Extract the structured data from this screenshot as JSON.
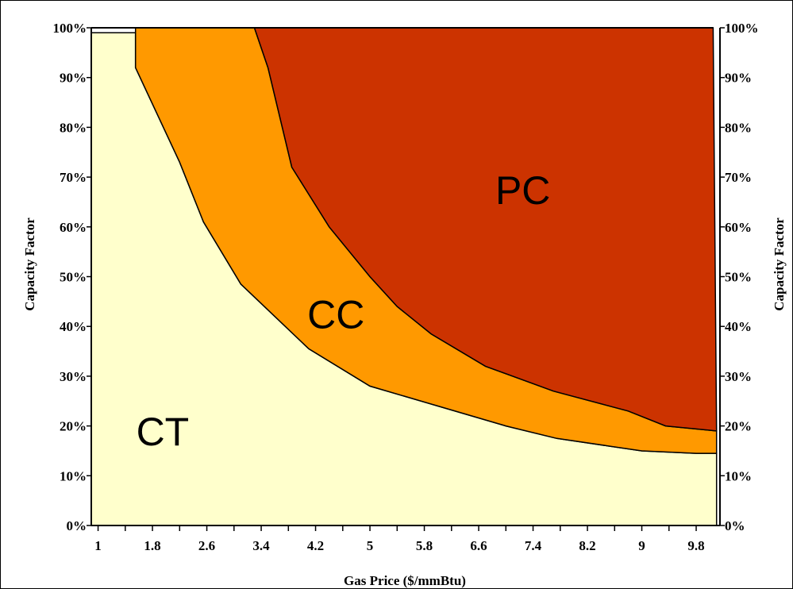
{
  "chart_data": {
    "type": "area",
    "title": "",
    "xlabel": "Gas Price ($/mmBtu)",
    "ylabel": "Capacity Factor",
    "ylabel_right": "Capacity Factor",
    "x_ticks": [
      "1",
      "1.8",
      "2.6",
      "3.4",
      "4.2",
      "5",
      "5.8",
      "6.6",
      "7.4",
      "8.2",
      "9",
      "9.8"
    ],
    "y_ticks": [
      "0%",
      "10%",
      "20%",
      "30%",
      "40%",
      "50%",
      "60%",
      "70%",
      "80%",
      "90%",
      "100%"
    ],
    "xlim": [
      0.9,
      10.15
    ],
    "ylim": [
      0,
      100
    ],
    "colors": {
      "CT": "#ffffcc",
      "CC": "#ff9900",
      "PC": "#cc3300"
    },
    "series": [
      {
        "name": "CT",
        "boundary": [
          {
            "x": 0.9,
            "y": 99
          },
          {
            "x": 1.15,
            "y": 99
          },
          {
            "x": 1.55,
            "y": 99
          },
          {
            "x": 1.55,
            "y": 92
          },
          {
            "x": 2.2,
            "y": 73
          },
          {
            "x": 2.55,
            "y": 61
          },
          {
            "x": 3.1,
            "y": 48.5
          },
          {
            "x": 4.1,
            "y": 35.5
          },
          {
            "x": 5.0,
            "y": 28
          },
          {
            "x": 6.0,
            "y": 24
          },
          {
            "x": 7.0,
            "y": 20
          },
          {
            "x": 7.75,
            "y": 17.5
          },
          {
            "x": 8.5,
            "y": 16
          },
          {
            "x": 9.0,
            "y": 15
          },
          {
            "x": 9.8,
            "y": 14.5
          },
          {
            "x": 10.1,
            "y": 14.5
          }
        ]
      },
      {
        "name": "CC",
        "boundary": [
          {
            "x": 3.3,
            "y": 100
          },
          {
            "x": 3.5,
            "y": 92
          },
          {
            "x": 3.85,
            "y": 72
          },
          {
            "x": 4.4,
            "y": 60
          },
          {
            "x": 5.0,
            "y": 50
          },
          {
            "x": 5.4,
            "y": 44
          },
          {
            "x": 5.9,
            "y": 38.5
          },
          {
            "x": 6.7,
            "y": 32
          },
          {
            "x": 7.7,
            "y": 27
          },
          {
            "x": 8.8,
            "y": 23
          },
          {
            "x": 9.35,
            "y": 20
          },
          {
            "x": 10.1,
            "y": 19
          }
        ]
      },
      {
        "name": "PC",
        "boundary": [
          {
            "x": 3.3,
            "y": 100
          },
          {
            "x": 10.05,
            "y": 100
          },
          {
            "x": 10.1,
            "y": 19
          }
        ]
      }
    ],
    "annotations": [
      {
        "text": "PC",
        "x": 7.25,
        "y": 67.5
      },
      {
        "text": "CC",
        "x": 4.5,
        "y": 42.5
      },
      {
        "text": "CT",
        "x": 1.95,
        "y": 19
      }
    ],
    "grid": false,
    "legend": "none"
  }
}
